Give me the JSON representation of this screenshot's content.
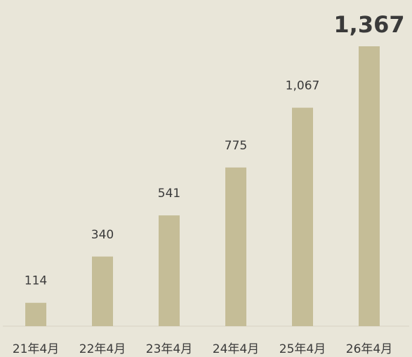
{
  "chart_data": {
    "type": "bar",
    "categories": [
      "21年4月",
      "22年4月",
      "23年4月",
      "24年4月",
      "25年4月",
      "26年4月"
    ],
    "values": [
      114,
      340,
      541,
      775,
      1067,
      1367
    ],
    "value_labels": [
      "114",
      "340",
      "541",
      "775",
      "1,067",
      "1,367"
    ],
    "color": "#c5bd97"
  }
}
